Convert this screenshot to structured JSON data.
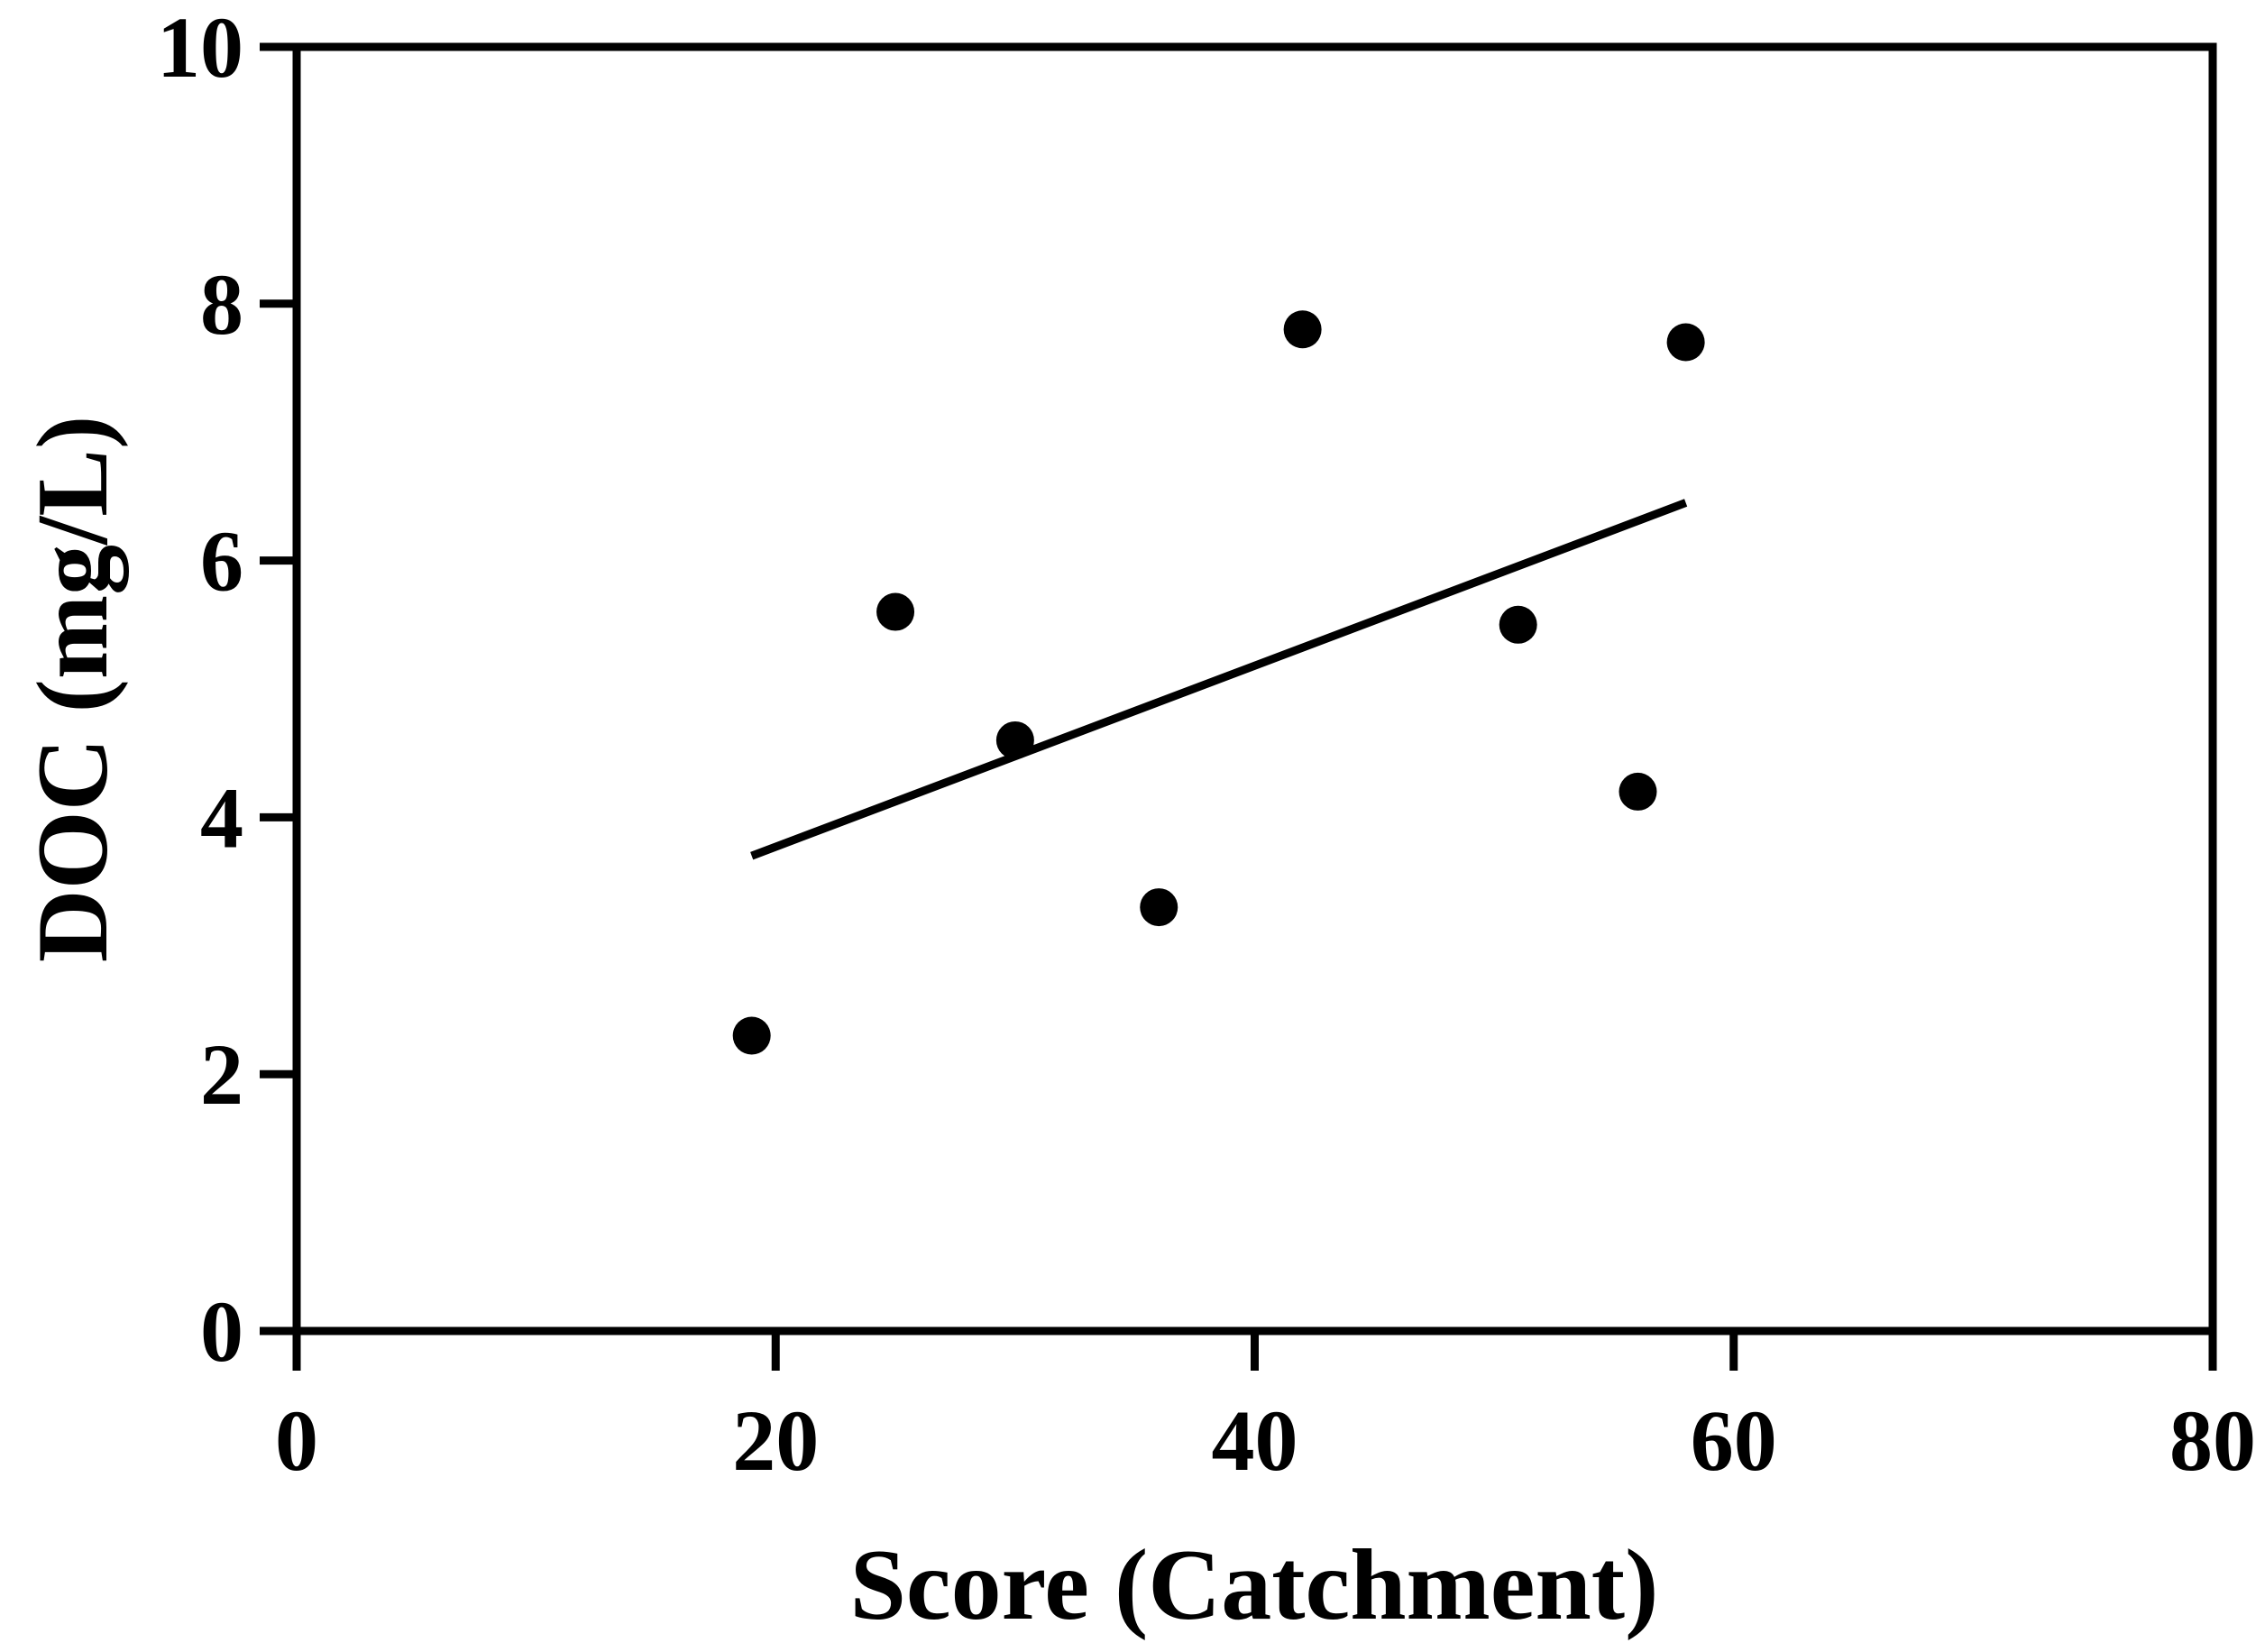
{
  "chart_data": {
    "type": "scatter",
    "title": "",
    "xlabel": "Score (Catchment)",
    "ylabel": "DOC (mg/L)",
    "xlim": [
      0,
      80
    ],
    "ylim": [
      0,
      10
    ],
    "xticks": [
      0,
      20,
      40,
      60,
      80
    ],
    "yticks": [
      0,
      2,
      4,
      6,
      8,
      10
    ],
    "xtick_labels": [
      "0",
      "20",
      "40",
      "60",
      "80"
    ],
    "ytick_labels": [
      "0",
      "2",
      "4",
      "6",
      "8",
      "10"
    ],
    "grid": false,
    "legend": "none",
    "series": [
      {
        "type": "scatter",
        "x": [
          19,
          25,
          30,
          36,
          42,
          51,
          56,
          58
        ],
        "y": [
          2.3,
          5.6,
          4.6,
          3.3,
          7.8,
          5.5,
          4.2,
          7.7
        ]
      },
      {
        "type": "line",
        "x": [
          19,
          58
        ],
        "y": [
          3.7,
          6.45
        ]
      }
    ],
    "colors": {
      "marker": "#000000",
      "line": "#000000",
      "axis": "#000000"
    }
  }
}
